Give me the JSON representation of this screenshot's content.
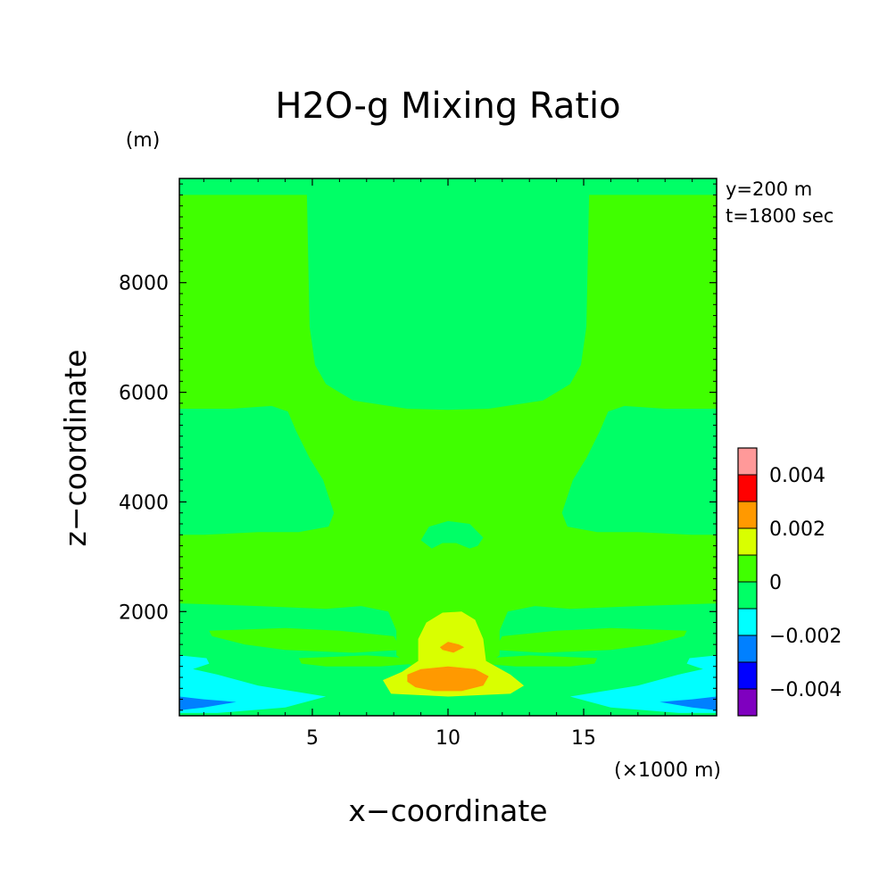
{
  "chart_data": {
    "type": "heatmap",
    "title": "H2O-g Mixing Ratio",
    "xlabel": "x−coordinate",
    "ylabel": "z−coordinate",
    "x_unit": "(×1000 m)",
    "y_unit": "(m)",
    "annotations": [
      "y=200 m",
      "t=1800 sec"
    ],
    "xlim": [
      0.1,
      19.9
    ],
    "ylim": [
      100,
      9900
    ],
    "x_ticks": [
      5,
      10,
      15
    ],
    "x_tick_labels": [
      "5",
      "10",
      "15"
    ],
    "y_ticks": [
      2000,
      4000,
      6000,
      8000
    ],
    "y_tick_labels": [
      "2000",
      "4000",
      "6000",
      "8000"
    ],
    "colorbar": {
      "levels": [
        -0.005,
        -0.004,
        -0.003,
        -0.002,
        -0.001,
        0,
        0.001,
        0.002,
        0.003,
        0.004,
        0.005
      ],
      "colors": [
        "#7f00bf",
        "#0000ff",
        "#0080ff",
        "#00ffff",
        "#00ff66",
        "#40ff00",
        "#d9ff00",
        "#ff9900",
        "#ff0000",
        "#ff9999"
      ],
      "tick_values": [
        -0.004,
        -0.002,
        0,
        0.002,
        0.004
      ],
      "tick_labels": [
        "−0.004",
        "−0.002",
        "0",
        "0.002",
        "0.004"
      ]
    },
    "regions": [
      {
        "name": "background",
        "level": "0 to 0.001",
        "color": "#40ff00"
      },
      {
        "name": "top-strip",
        "level": "-0.001 to 0",
        "color": "#00ff66",
        "points": [
          [
            0.1,
            9900
          ],
          [
            19.9,
            9900
          ],
          [
            19.9,
            9600
          ],
          [
            0.1,
            9600
          ]
        ]
      },
      {
        "name": "upper-central-plume",
        "level": "-0.001 to 0",
        "color": "#00ff66",
        "points": [
          [
            4.8,
            9900
          ],
          [
            15.2,
            9900
          ],
          [
            15.2,
            9600
          ],
          [
            15.1,
            7200
          ],
          [
            14.9,
            6500
          ],
          [
            14.5,
            6150
          ],
          [
            13.5,
            5850
          ],
          [
            11.5,
            5700
          ],
          [
            10,
            5680
          ],
          [
            8.5,
            5700
          ],
          [
            6.5,
            5850
          ],
          [
            5.5,
            6150
          ],
          [
            5.1,
            6500
          ],
          [
            4.9,
            7200
          ],
          [
            4.8,
            9600
          ]
        ]
      },
      {
        "name": "left-mid-lobe",
        "level": "-0.001 to 0",
        "color": "#00ff66",
        "points": [
          [
            0.1,
            5700
          ],
          [
            2,
            5700
          ],
          [
            3.5,
            5750
          ],
          [
            4.1,
            5650
          ],
          [
            4.4,
            5300
          ],
          [
            4.9,
            4800
          ],
          [
            5.4,
            4400
          ],
          [
            5.8,
            3800
          ],
          [
            5.6,
            3550
          ],
          [
            4.5,
            3450
          ],
          [
            3,
            3450
          ],
          [
            1,
            3400
          ],
          [
            0.1,
            3400
          ]
        ]
      },
      {
        "name": "right-mid-lobe",
        "level": "-0.001 to 0",
        "color": "#00ff66",
        "points": [
          [
            19.9,
            5700
          ],
          [
            18,
            5700
          ],
          [
            16.5,
            5750
          ],
          [
            15.9,
            5650
          ],
          [
            15.6,
            5300
          ],
          [
            15.1,
            4800
          ],
          [
            14.6,
            4400
          ],
          [
            14.2,
            3800
          ],
          [
            14.4,
            3550
          ],
          [
            15.5,
            3450
          ],
          [
            17,
            3450
          ],
          [
            19,
            3400
          ],
          [
            19.9,
            3400
          ]
        ]
      },
      {
        "name": "small-central-blob",
        "level": "-0.001 to 0",
        "color": "#00ff66",
        "points": [
          [
            9,
            3300
          ],
          [
            9.3,
            3550
          ],
          [
            10,
            3650
          ],
          [
            10.8,
            3600
          ],
          [
            11.3,
            3350
          ],
          [
            11.1,
            3200
          ],
          [
            10.8,
            3150
          ],
          [
            10.3,
            3250
          ],
          [
            9.8,
            3250
          ],
          [
            9.4,
            3150
          ]
        ]
      },
      {
        "name": "left-lower-band",
        "level": "-0.001 to 0",
        "color": "#00ff66",
        "points": [
          [
            0.1,
            2150
          ],
          [
            3,
            2100
          ],
          [
            5.5,
            2050
          ],
          [
            6.8,
            2100
          ],
          [
            7.8,
            2000
          ],
          [
            8.1,
            1650
          ],
          [
            8.1,
            1200
          ],
          [
            9,
            900
          ],
          [
            10,
            700
          ],
          [
            11,
            900
          ],
          [
            11.9,
            1200
          ],
          [
            11.9,
            1650
          ],
          [
            12.2,
            2000
          ],
          [
            13.2,
            2100
          ],
          [
            14.5,
            2050
          ],
          [
            17,
            2100
          ],
          [
            19.9,
            2150
          ],
          [
            19.9,
            100
          ],
          [
            0.1,
            100
          ]
        ]
      },
      {
        "name": "lower-tongue-left",
        "level": "0 to 0.001",
        "color": "#40ff00",
        "points": [
          [
            1.2,
            1650
          ],
          [
            4,
            1700
          ],
          [
            6,
            1650
          ],
          [
            8,
            1550
          ],
          [
            8.3,
            1300
          ],
          [
            6.5,
            1250
          ],
          [
            4,
            1300
          ],
          [
            2.5,
            1400
          ],
          [
            1.3,
            1550
          ]
        ]
      },
      {
        "name": "lower-tongue-right",
        "level": "0 to 0.001",
        "color": "#40ff00",
        "points": [
          [
            18.8,
            1650
          ],
          [
            16,
            1700
          ],
          [
            14,
            1650
          ],
          [
            12,
            1550
          ],
          [
            11.7,
            1300
          ],
          [
            13.5,
            1250
          ],
          [
            16,
            1300
          ],
          [
            17.5,
            1400
          ],
          [
            18.7,
            1550
          ]
        ]
      },
      {
        "name": "lower-tongue-left-2",
        "level": "0 to 0.001",
        "color": "#40ff00",
        "points": [
          [
            4.5,
            1150
          ],
          [
            7,
            1200
          ],
          [
            8.6,
            1150
          ],
          [
            8.8,
            1050
          ],
          [
            7.5,
            1000
          ],
          [
            5.5,
            1000
          ],
          [
            4.6,
            1050
          ]
        ]
      },
      {
        "name": "lower-tongue-right-2",
        "level": "0 to 0.001",
        "color": "#40ff00",
        "points": [
          [
            15.5,
            1150
          ],
          [
            13,
            1200
          ],
          [
            11.4,
            1150
          ],
          [
            11.2,
            1050
          ],
          [
            12.5,
            1000
          ],
          [
            14.5,
            1000
          ],
          [
            15.4,
            1050
          ]
        ]
      },
      {
        "name": "left-cyan",
        "level": "-0.002 to -0.001",
        "color": "#00ffff",
        "points": [
          [
            0.1,
            1200
          ],
          [
            1.1,
            1150
          ],
          [
            1.2,
            1050
          ],
          [
            0.6,
            950
          ],
          [
            1.5,
            850
          ],
          [
            3,
            650
          ],
          [
            5.5,
            450
          ],
          [
            4,
            250
          ],
          [
            1.5,
            150
          ],
          [
            0.1,
            150
          ]
        ]
      },
      {
        "name": "right-cyan",
        "level": "-0.002 to -0.001",
        "color": "#00ffff",
        "points": [
          [
            19.9,
            1200
          ],
          [
            18.9,
            1150
          ],
          [
            18.8,
            1050
          ],
          [
            19.4,
            950
          ],
          [
            18.5,
            850
          ],
          [
            17,
            650
          ],
          [
            14.5,
            450
          ],
          [
            16,
            250
          ],
          [
            18.5,
            150
          ],
          [
            19.9,
            150
          ]
        ]
      },
      {
        "name": "left-blue",
        "level": "-0.003 to -0.002",
        "color": "#0080ff",
        "points": [
          [
            0.1,
            450
          ],
          [
            1,
            400
          ],
          [
            2.2,
            350
          ],
          [
            1,
            250
          ],
          [
            0.1,
            200
          ]
        ]
      },
      {
        "name": "right-blue",
        "level": "-0.003 to -0.002",
        "color": "#0080ff",
        "points": [
          [
            19.9,
            450
          ],
          [
            19,
            400
          ],
          [
            17.8,
            350
          ],
          [
            19,
            250
          ],
          [
            19.9,
            200
          ]
        ]
      },
      {
        "name": "central-yellow",
        "level": "0.001 to 0.002",
        "color": "#d9ff00",
        "points": [
          [
            9.2,
            1800
          ],
          [
            9.8,
            1980
          ],
          [
            10.5,
            2000
          ],
          [
            11,
            1850
          ],
          [
            11.3,
            1500
          ],
          [
            11.4,
            1100
          ],
          [
            12.3,
            850
          ],
          [
            12.8,
            650
          ],
          [
            12.3,
            500
          ],
          [
            10,
            450
          ],
          [
            7.9,
            500
          ],
          [
            7.6,
            750
          ],
          [
            8.3,
            900
          ],
          [
            8.9,
            1100
          ],
          [
            8.9,
            1500
          ]
        ]
      },
      {
        "name": "central-orange",
        "level": "0.002 to 0.003",
        "color": "#ff9900",
        "points": [
          [
            8.5,
            850
          ],
          [
            9,
            950
          ],
          [
            10,
            1000
          ],
          [
            11,
            950
          ],
          [
            11.5,
            820
          ],
          [
            11.3,
            650
          ],
          [
            10.5,
            550
          ],
          [
            9.5,
            550
          ],
          [
            8.8,
            620
          ],
          [
            8.5,
            720
          ]
        ]
      },
      {
        "name": "central-orange-dot",
        "level": "0.002 to 0.003",
        "color": "#ff9900",
        "points": [
          [
            9.7,
            1350
          ],
          [
            10,
            1450
          ],
          [
            10.4,
            1400
          ],
          [
            10.6,
            1350
          ],
          [
            10.2,
            1250
          ],
          [
            9.8,
            1300
          ]
        ]
      }
    ]
  }
}
